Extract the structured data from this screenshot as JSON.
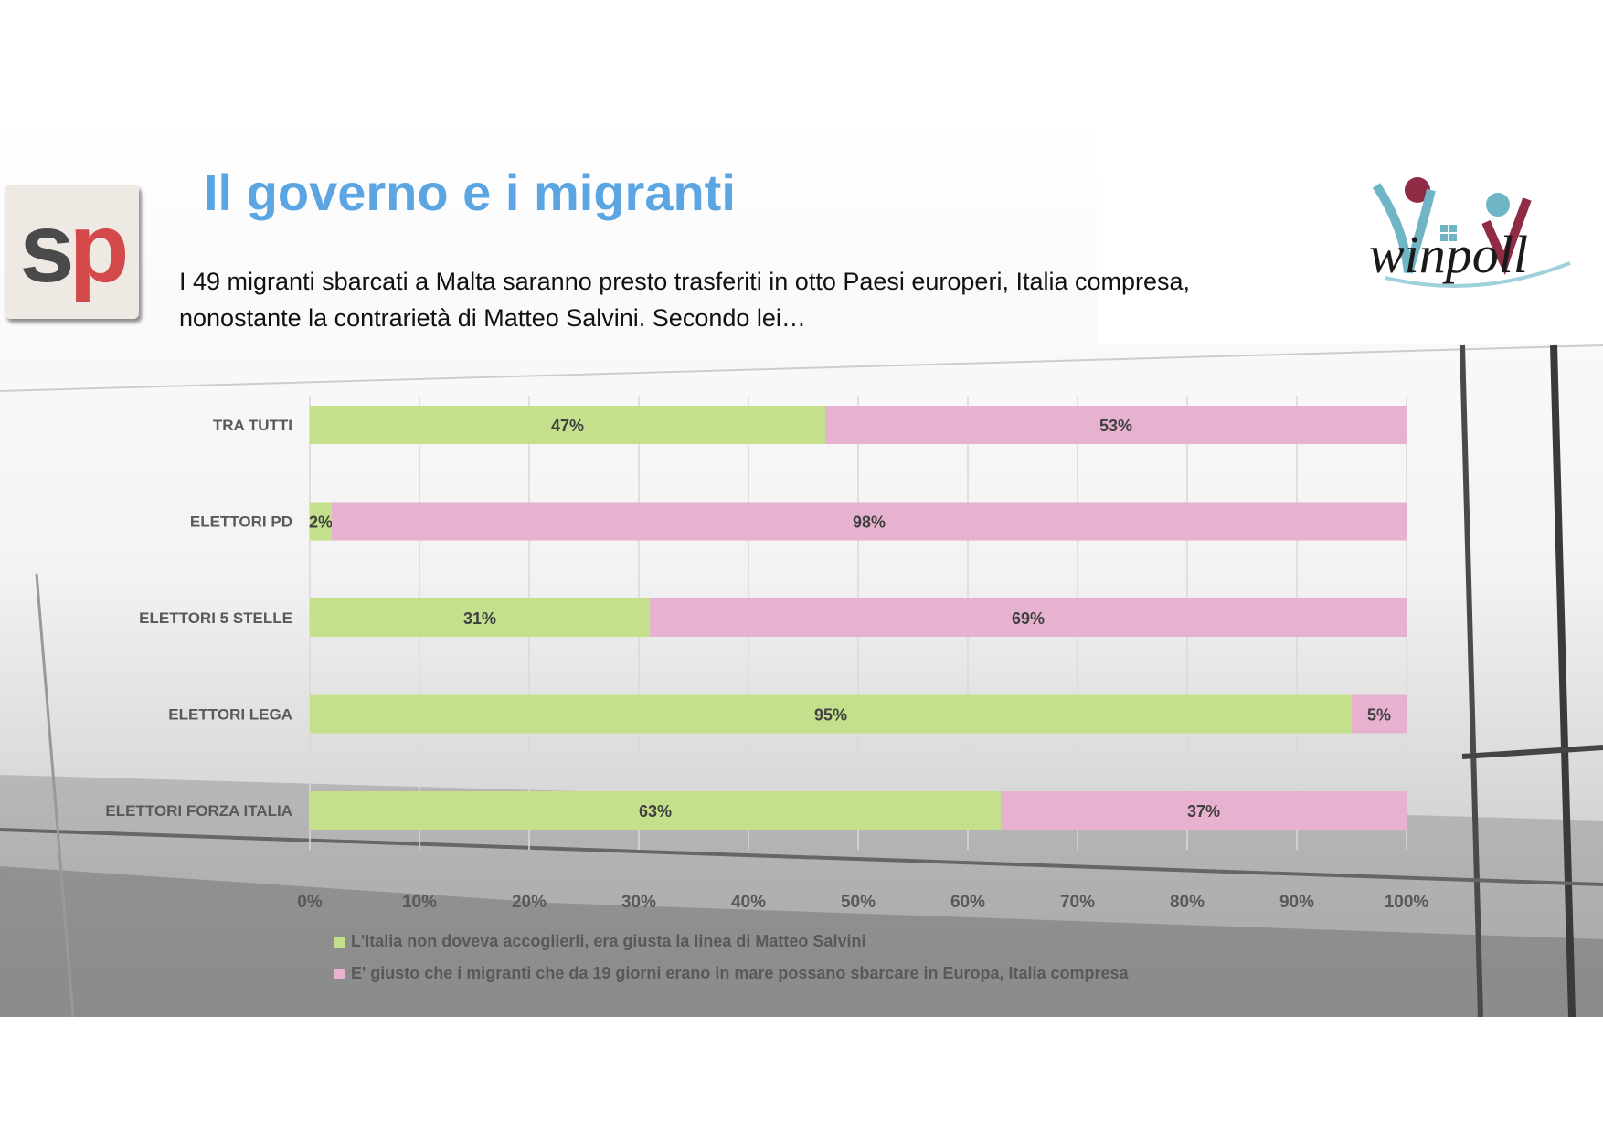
{
  "slide": {
    "title": "Il governo e i migranti",
    "question": " I 49 migranti sbarcati a Malta saranno presto trasferiti in otto Paesi europeri, Italia compresa, nonostante la contrarietà di Matteo Salvini. Secondo lei…",
    "left_logo_text": "sp",
    "right_logo_text": "winpoll"
  },
  "colors": {
    "title": "#5aa5e2",
    "series_1": "#c5e08d",
    "series_2": "#e6b2cf",
    "gridline": "#d9d9d9",
    "label_text": "#595959",
    "logo_red": "#d44a4a",
    "logo_grey": "#4a4a4a",
    "winpoll_maroon": "#8f2b45",
    "winpoll_teal": "#6fb5c6"
  },
  "chart_data": {
    "type": "bar",
    "orientation": "horizontal",
    "stacked": true,
    "categories": [
      "TRA TUTTI",
      "ELETTORI PD",
      "ELETTORI 5 STELLE",
      "ELETTORI LEGA",
      "ELETTORI FORZA ITALIA"
    ],
    "series": [
      {
        "name": "L'Italia non doveva accoglierli, era giusta la linea di Matteo Salvini",
        "values": [
          47,
          2,
          31,
          95,
          63
        ]
      },
      {
        "name": "E' giusto che i migranti che da 19 giorni erano in mare possano sbarcare in Europa, Italia compresa",
        "values": [
          53,
          98,
          69,
          5,
          37
        ]
      }
    ],
    "xlim": [
      0,
      100
    ],
    "x_ticks": [
      "0%",
      "10%",
      "20%",
      "30%",
      "40%",
      "50%",
      "60%",
      "70%",
      "80%",
      "90%",
      "100%"
    ],
    "grid": true,
    "legend_position": "bottom"
  }
}
